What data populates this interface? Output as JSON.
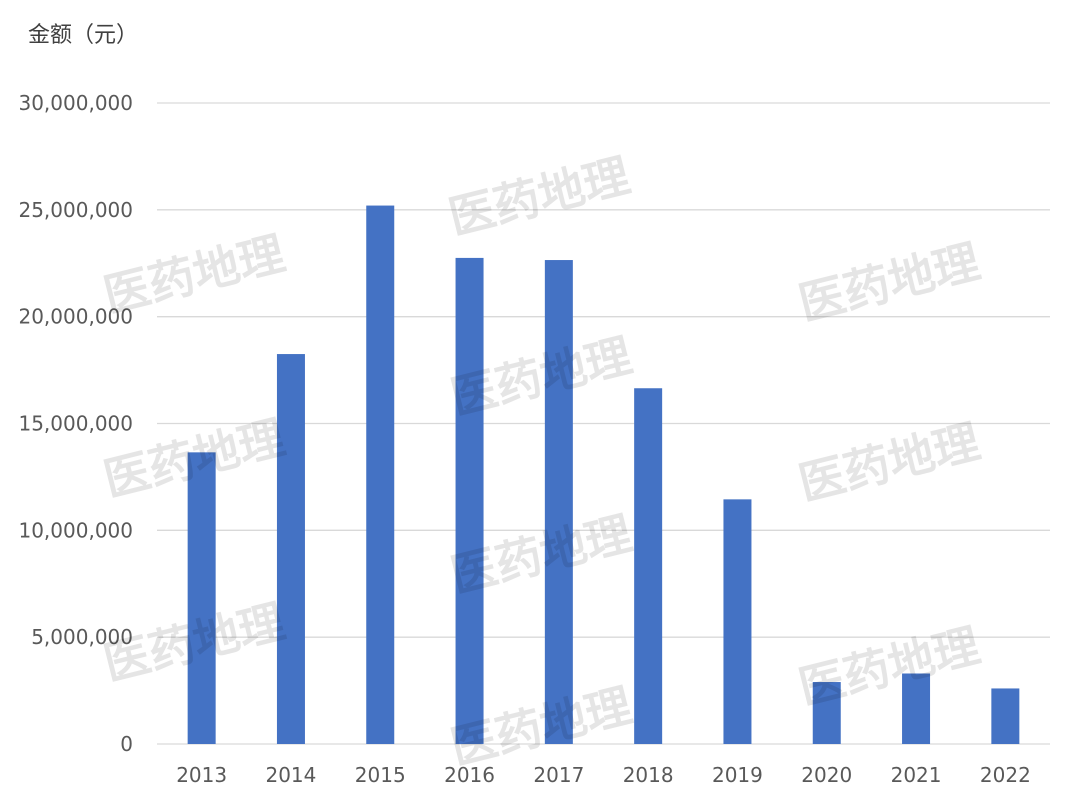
{
  "chart_data": {
    "type": "bar",
    "y_unit_label": "金额（元）",
    "categories": [
      "2013",
      "2014",
      "2015",
      "2016",
      "2017",
      "2018",
      "2019",
      "2020",
      "2021",
      "2022"
    ],
    "values": [
      13650000,
      18250000,
      25200000,
      22750000,
      22650000,
      16650000,
      11450000,
      2900000,
      3300000,
      2600000
    ],
    "ylim": [
      0,
      30000000
    ],
    "yticks": [
      0,
      5000000,
      10000000,
      15000000,
      20000000,
      25000000,
      30000000
    ],
    "ytick_labels": [
      "0",
      "5,000,000",
      "10,000,000",
      "15,000,000",
      "20,000,000",
      "25,000,000",
      "30,000,000"
    ],
    "grid": true,
    "bar_color": "#4472C4",
    "grid_color": "#D9D9D9"
  },
  "watermark": "医药地理"
}
